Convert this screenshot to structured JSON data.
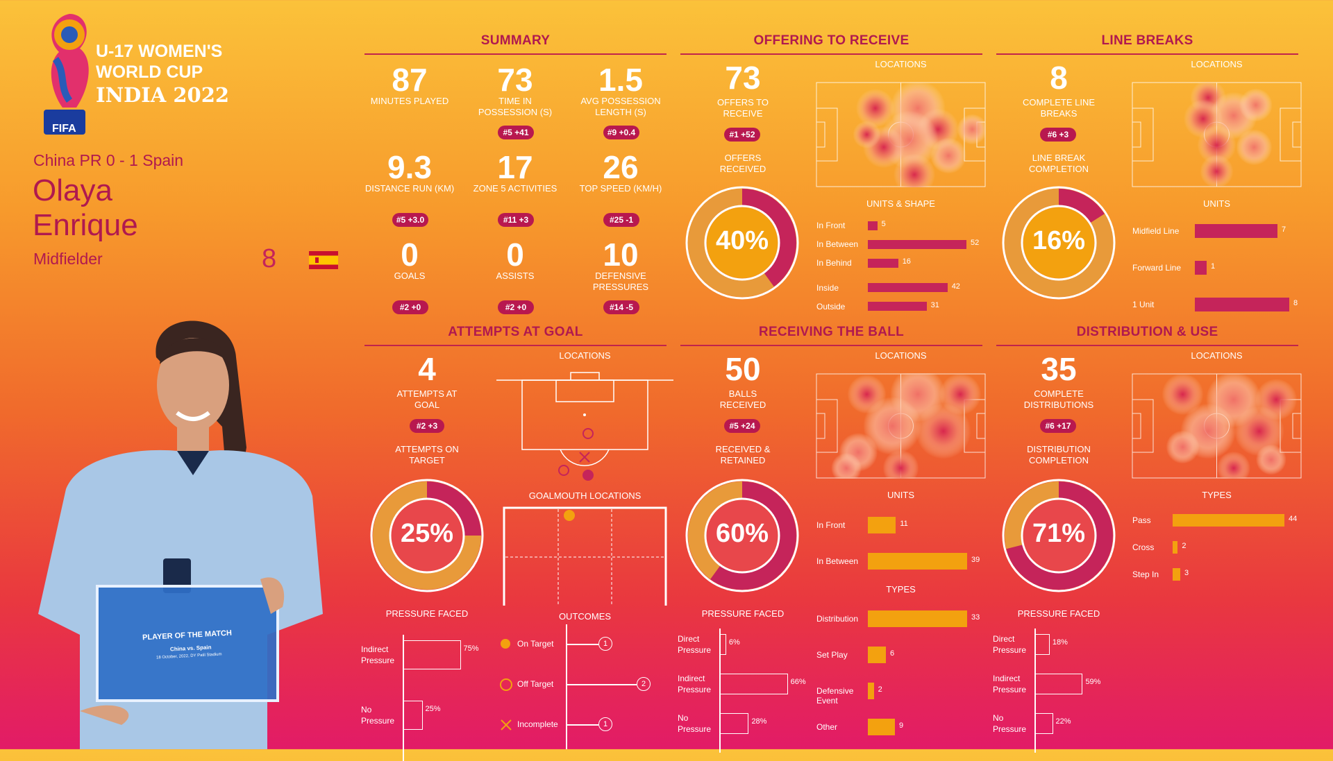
{
  "header": {
    "tournament_line1": "U-17 WOMEN'S",
    "tournament_line2": "WORLD CUP",
    "tournament_line3": "INDIA 2022",
    "fifa": "FIFA",
    "match": "China PR 0 - 1 Spain",
    "player_first": "Olaya",
    "player_last": "Enrique",
    "position": "Midfielder",
    "number": "8"
  },
  "certificate": {
    "title": "PLAYER OF THE MATCH",
    "match": "China vs. Spain",
    "date": "18 October, 2022, DY Patil Stadium"
  },
  "summary": {
    "title": "SUMMARY",
    "stats": [
      {
        "value": "87",
        "label": "MINUTES PLAYED",
        "badge": ""
      },
      {
        "value": "73",
        "label": "TIME IN POSSESSION (S)",
        "badge": "#5 +41"
      },
      {
        "value": "1.5",
        "label": "AVG POSSESSION LENGTH (S)",
        "badge": "#9 +0.4"
      },
      {
        "value": "9.3",
        "label": "DISTANCE RUN (KM)",
        "badge": "#5 +3.0"
      },
      {
        "value": "17",
        "label": "ZONE 5 ACTIVITIES",
        "badge": "#11 +3"
      },
      {
        "value": "26",
        "label": "TOP SPEED (KM/H)",
        "badge": "#25 -1"
      },
      {
        "value": "0",
        "label": "GOALS",
        "badge": "#2 +0"
      },
      {
        "value": "0",
        "label": "ASSISTS",
        "badge": "#2 +0"
      },
      {
        "value": "10",
        "label": "DEFENSIVE PRESSURES",
        "badge": "#14 -5"
      }
    ]
  },
  "offering": {
    "title": "OFFERING TO RECEIVE",
    "value": "73",
    "label": "OFFERS TO RECEIVE",
    "badge": "#1 +52",
    "donut_label": "OFFERS RECEIVED",
    "pct": "40%",
    "pct_value": 0.4,
    "locations": "LOCATIONS",
    "units_title": "UNITS & SHAPE",
    "bars": [
      {
        "label": "In Front",
        "value": 5
      },
      {
        "label": "In Between",
        "value": 52
      },
      {
        "label": "In Behind",
        "value": 16
      },
      {
        "label": "Inside",
        "value": 42
      },
      {
        "label": "Outside",
        "value": 31
      }
    ]
  },
  "linebreaks": {
    "title": "LINE BREAKS",
    "value": "8",
    "label": "COMPLETE LINE BREAKS",
    "badge": "#6 +3",
    "donut_label": "LINE BREAK COMPLETION",
    "pct": "16%",
    "pct_value": 0.16,
    "locations": "LOCATIONS",
    "units_title": "UNITS",
    "bars": [
      {
        "label": "Midfield Line",
        "value": 7
      },
      {
        "label": "Forward Line",
        "value": 1
      },
      {
        "label": "1 Unit",
        "value": 8
      }
    ]
  },
  "attempts": {
    "title": "ATTEMPTS AT GOAL",
    "value": "4",
    "label": "ATTEMPTS AT GOAL",
    "badge": "#2 +3",
    "donut_label": "ATTEMPTS ON TARGET",
    "pct": "25%",
    "pct_value": 0.25,
    "locations": "LOCATIONS",
    "goalmouth": "GOALMOUTH LOCATIONS",
    "pressure_title": "PRESSURE FACED",
    "pressure": [
      {
        "label": "Indirect Pressure",
        "pct": "75%",
        "value": 75
      },
      {
        "label": "No Pressure",
        "pct": "25%",
        "value": 25
      }
    ],
    "outcomes_title": "OUTCOMES",
    "outcomes": [
      {
        "label": "On Target",
        "count": "1"
      },
      {
        "label": "Off Target",
        "count": "2"
      },
      {
        "label": "Incomplete",
        "count": "1"
      }
    ]
  },
  "receiving": {
    "title": "RECEIVING THE BALL",
    "value": "50",
    "label": "BALLS RECEIVED",
    "badge": "#5 +24",
    "donut_label": "RECEIVED & RETAINED",
    "pct": "60%",
    "pct_value": 0.6,
    "locations": "LOCATIONS",
    "units_title": "UNITS",
    "types_title": "TYPES",
    "units": [
      {
        "label": "In Front",
        "value": 11
      },
      {
        "label": "In Between",
        "value": 39
      }
    ],
    "types": [
      {
        "label": "Distribution",
        "value": 33
      },
      {
        "label": "Set Play",
        "value": 6
      },
      {
        "label": "Defensive Event",
        "value": 2
      },
      {
        "label": "Other",
        "value": 9
      }
    ],
    "pressure_title": "PRESSURE FACED",
    "pressure": [
      {
        "label": "Direct Pressure",
        "pct": "6%",
        "value": 6
      },
      {
        "label": "Indirect Pressure",
        "pct": "66%",
        "value": 66
      },
      {
        "label": "No Pressure",
        "pct": "28%",
        "value": 28
      }
    ]
  },
  "distribution": {
    "title": "DISTRIBUTION & USE",
    "value": "35",
    "label": "COMPLETE DISTRIBUTIONS",
    "badge": "#6 +17",
    "donut_label": "DISTRIBUTION COMPLETION",
    "pct": "71%",
    "pct_value": 0.71,
    "locations": "LOCATIONS",
    "types_title": "TYPES",
    "types": [
      {
        "label": "Pass",
        "value": 44
      },
      {
        "label": "Cross",
        "value": 2
      },
      {
        "label": "Step In",
        "value": 3
      }
    ],
    "pressure_title": "PRESSURE FACED",
    "pressure": [
      {
        "label": "Direct Pressure",
        "pct": "18%",
        "value": 18
      },
      {
        "label": "Indirect Pressure",
        "pct": "59%",
        "value": 59
      },
      {
        "label": "No Pressure",
        "pct": "22%",
        "value": 22
      }
    ]
  },
  "colors": {
    "magenta": "#c5245a",
    "orange": "#f3a10f",
    "title": "#b0194f",
    "light_orange": "#e89a3a"
  }
}
